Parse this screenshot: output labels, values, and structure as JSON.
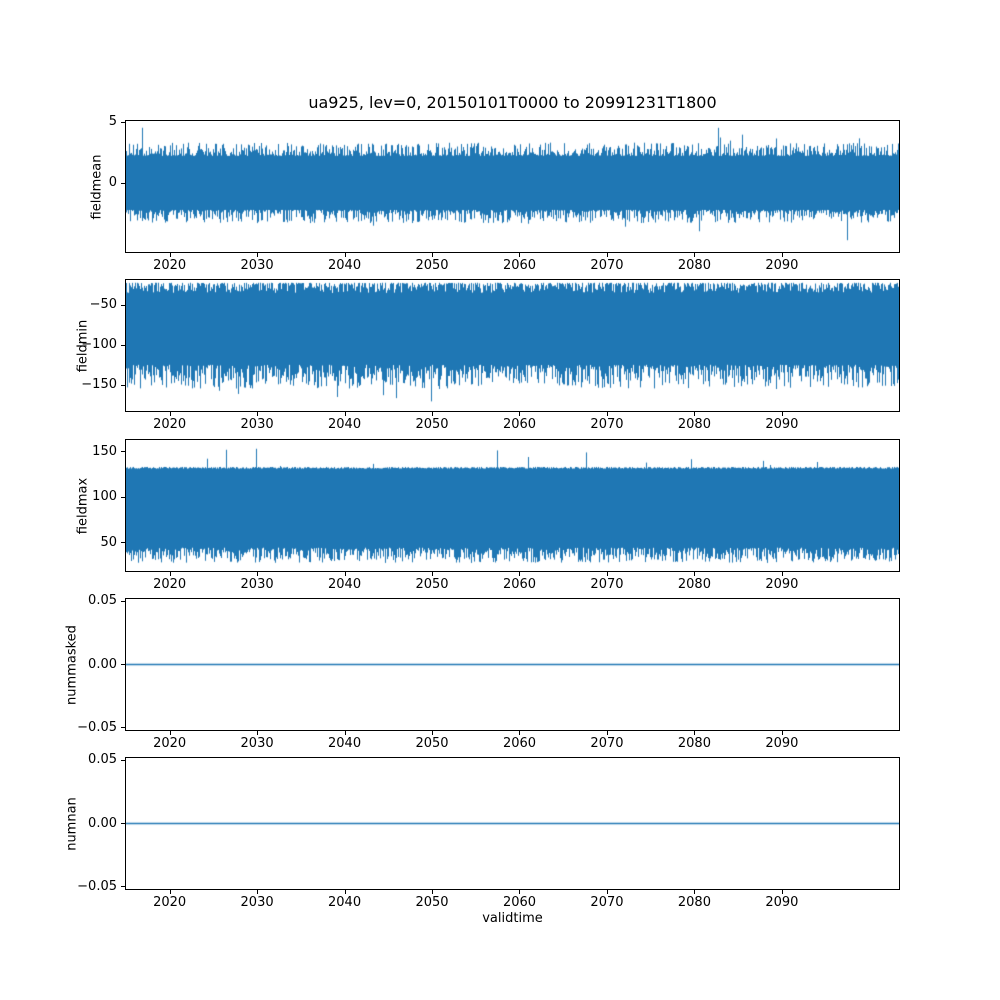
{
  "figure": {
    "title": "ua925, lev=0, 20150101T0000 to 20991231T1800",
    "xlabel": "validtime",
    "line_color": "#1f77b4",
    "frame_color": "#000000",
    "background": "#ffffff"
  },
  "chart_data": [
    {
      "type": "line",
      "name": "fieldmean",
      "ylabel": "fieldmean",
      "xlim": [
        2014.9,
        2103.5
      ],
      "ylim": [
        -5.7,
        5.2
      ],
      "xtick_values": [
        2020,
        2030,
        2040,
        2050,
        2060,
        2070,
        2080,
        2090
      ],
      "xtick_labels": [
        "2020",
        "2030",
        "2040",
        "2050",
        "2060",
        "2070",
        "2080",
        "2090"
      ],
      "ytick_values": [
        0,
        5
      ],
      "ytick_labels": [
        "0",
        "5"
      ],
      "series": {
        "kind": "noise-band",
        "description": "High-frequency time series oscillating about 0; dense band roughly -2.5 to 2.5, spikes to about -4.9 and 5.0",
        "top_base": 2.3,
        "top_amp": 1.1,
        "top_exp": 2,
        "top_spike_prob": 0.015,
        "top_spike_add": 1.6,
        "bottom_base": -2.2,
        "bottom_amp": -1.1,
        "bottom_exp": 2,
        "bottom_spike_prob": 0.015,
        "bottom_spike_add": -1.7
      }
    },
    {
      "type": "line",
      "name": "fieldmin",
      "ylabel": "fieldmin",
      "xlim": [
        2014.9,
        2103.5
      ],
      "ylim": [
        -183.5,
        -17.5
      ],
      "xtick_values": [
        2020,
        2030,
        2040,
        2050,
        2060,
        2070,
        2080,
        2090
      ],
      "xtick_labels": [
        "2020",
        "2030",
        "2040",
        "2050",
        "2060",
        "2070",
        "2080",
        "2090"
      ],
      "ytick_values": [
        -150,
        -100,
        -50
      ],
      "ytick_labels": [
        "−150",
        "−100",
        "−50"
      ],
      "series": {
        "kind": "noise-band",
        "description": "Dense band of minima roughly -25 down to -150, with occasional spikes to about -176",
        "top_base": -21,
        "top_amp": -13,
        "top_exp": 2,
        "top_spike_prob": 0,
        "top_spike_add": 0,
        "bottom_base": -125,
        "bottom_amp": -30,
        "bottom_exp": 1.5,
        "bottom_spike_prob": 0.03,
        "bottom_spike_add": -20
      }
    },
    {
      "type": "line",
      "name": "fieldmax",
      "ylabel": "fieldmax",
      "xlim": [
        2014.9,
        2103.5
      ],
      "ylim": [
        18,
        164
      ],
      "xtick_values": [
        2020,
        2030,
        2040,
        2050,
        2060,
        2070,
        2080,
        2090
      ],
      "xtick_labels": [
        "2020",
        "2030",
        "2040",
        "2050",
        "2060",
        "2070",
        "2080",
        "2090"
      ],
      "ytick_values": [
        50,
        100,
        150
      ],
      "ytick_labels": [
        "50",
        "100",
        "150"
      ],
      "series": {
        "kind": "noise-band",
        "description": "Dense band of maxima from about 27 up to a near-constant ceiling near 133, with sparse spikes up to about 155",
        "top_base": 132,
        "top_amp": 2,
        "top_exp": 1,
        "top_spike_prob": 0.02,
        "top_spike_add": 22,
        "bottom_base": 44,
        "bottom_amp": -17,
        "bottom_exp": 1.3,
        "bottom_spike_prob": 0,
        "bottom_spike_add": 0
      }
    },
    {
      "type": "line",
      "name": "nummasked",
      "ylabel": "nummasked",
      "xlim": [
        2014.9,
        2103.5
      ],
      "ylim": [
        -0.0525,
        0.0525
      ],
      "xtick_values": [
        2020,
        2030,
        2040,
        2050,
        2060,
        2070,
        2080,
        2090
      ],
      "xtick_labels": [
        "2020",
        "2030",
        "2040",
        "2050",
        "2060",
        "2070",
        "2080",
        "2090"
      ],
      "ytick_values": [
        -0.05,
        0,
        0.05
      ],
      "ytick_labels": [
        "−0.05",
        "0.00",
        "0.05"
      ],
      "series": {
        "kind": "constant",
        "value": 0,
        "description": "Constant zero line for entire period"
      }
    },
    {
      "type": "line",
      "name": "numnan",
      "ylabel": "numnan",
      "xlim": [
        2014.9,
        2103.5
      ],
      "ylim": [
        -0.0525,
        0.0525
      ],
      "xtick_values": [
        2020,
        2030,
        2040,
        2050,
        2060,
        2070,
        2080,
        2090
      ],
      "xtick_labels": [
        "2020",
        "2030",
        "2040",
        "2050",
        "2060",
        "2070",
        "2080",
        "2090"
      ],
      "ytick_values": [
        -0.05,
        0,
        0.05
      ],
      "ytick_labels": [
        "−0.05",
        "0.00",
        "0.05"
      ],
      "series": {
        "kind": "constant",
        "value": 0,
        "description": "Constant zero line for entire period"
      }
    }
  ]
}
